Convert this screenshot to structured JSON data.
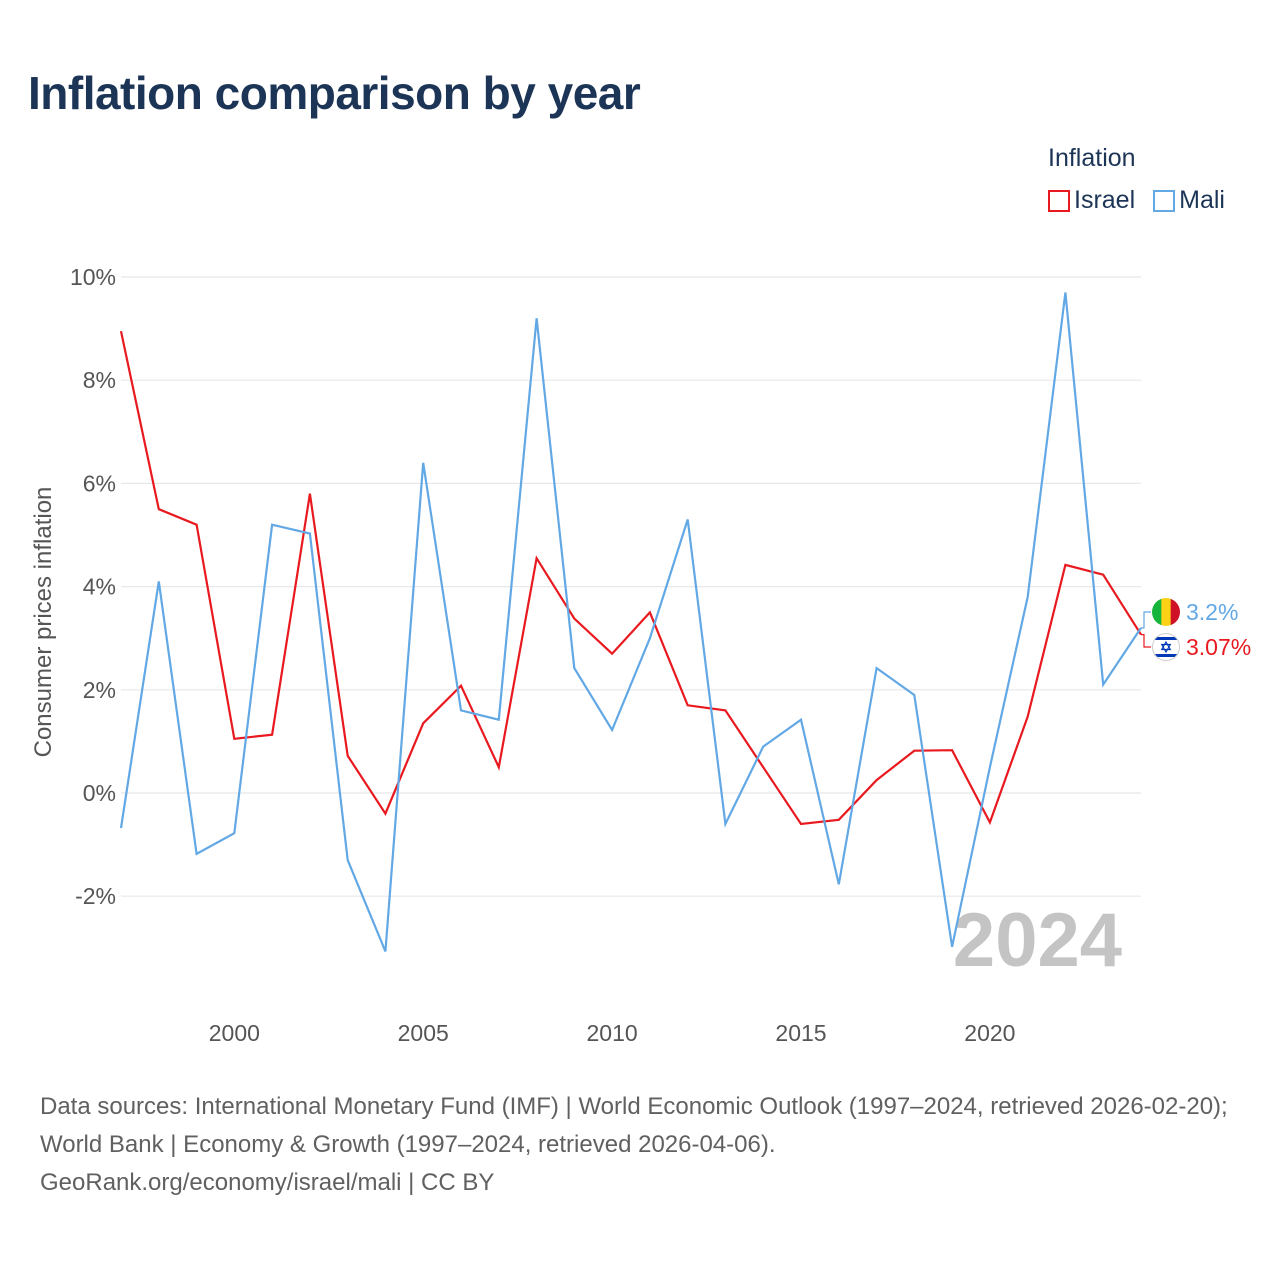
{
  "page": {
    "title": "Inflation comparison by year",
    "source_line1": "Data sources: International Monetary Fund (IMF) | World Economic Outlook (1997–2024, retrieved 2026-02-20); World Bank | Economy & Growth (1997–2024, retrieved 2026-04-06).",
    "source_line2": "GeoRank.org/economy/israel/mali | CC BY"
  },
  "legend": {
    "title": "Inflation",
    "items": [
      {
        "label": "Israel",
        "color": "#e8191f"
      },
      {
        "label": "Mali",
        "color": "#62a8e5"
      }
    ]
  },
  "chart_data": {
    "type": "line",
    "title": "Inflation comparison by year",
    "xlabel": "",
    "ylabel": "Consumer prices inflation",
    "ylim": [
      -4,
      10
    ],
    "xlim": [
      1997,
      2024
    ],
    "yticks": [
      -2,
      0,
      2,
      4,
      6,
      8,
      10
    ],
    "ytick_labels": [
      "-2%",
      "0%",
      "2%",
      "4%",
      "6%",
      "8%",
      "10%"
    ],
    "xticks": [
      2000,
      2005,
      2010,
      2015,
      2020
    ],
    "xtick_labels": [
      "2000",
      "2005",
      "2010",
      "2015",
      "2020"
    ],
    "grid": true,
    "year_watermark": "2024",
    "x": [
      1997,
      1998,
      1999,
      2000,
      2001,
      2002,
      2003,
      2004,
      2005,
      2006,
      2007,
      2008,
      2009,
      2010,
      2011,
      2012,
      2013,
      2014,
      2015,
      2016,
      2017,
      2018,
      2019,
      2020,
      2021,
      2022,
      2023,
      2024
    ],
    "series": [
      {
        "name": "Israel",
        "color": "#e8191f",
        "values": [
          8.95,
          5.5,
          5.2,
          1.05,
          1.13,
          5.8,
          0.72,
          -0.4,
          1.35,
          2.08,
          0.5,
          4.55,
          3.38,
          2.7,
          3.5,
          1.7,
          1.6,
          0.5,
          -0.6,
          -0.52,
          0.25,
          0.82,
          0.83,
          -0.57,
          1.48,
          4.42,
          4.23,
          3.07
        ],
        "end_label": "3.07%",
        "flag_icon": "israel-flag-icon"
      },
      {
        "name": "Mali",
        "color": "#62a8e5",
        "values": [
          -0.68,
          4.1,
          -1.18,
          -0.78,
          5.2,
          5.03,
          -1.3,
          -3.07,
          6.4,
          1.6,
          1.42,
          9.2,
          2.42,
          1.22,
          3.0,
          5.3,
          -0.6,
          0.9,
          1.42,
          -1.77,
          2.42,
          1.9,
          -2.98,
          0.5,
          3.8,
          9.7,
          2.1,
          3.2
        ],
        "end_label": "3.2%",
        "flag_icon": "mali-flag-icon"
      }
    ]
  }
}
